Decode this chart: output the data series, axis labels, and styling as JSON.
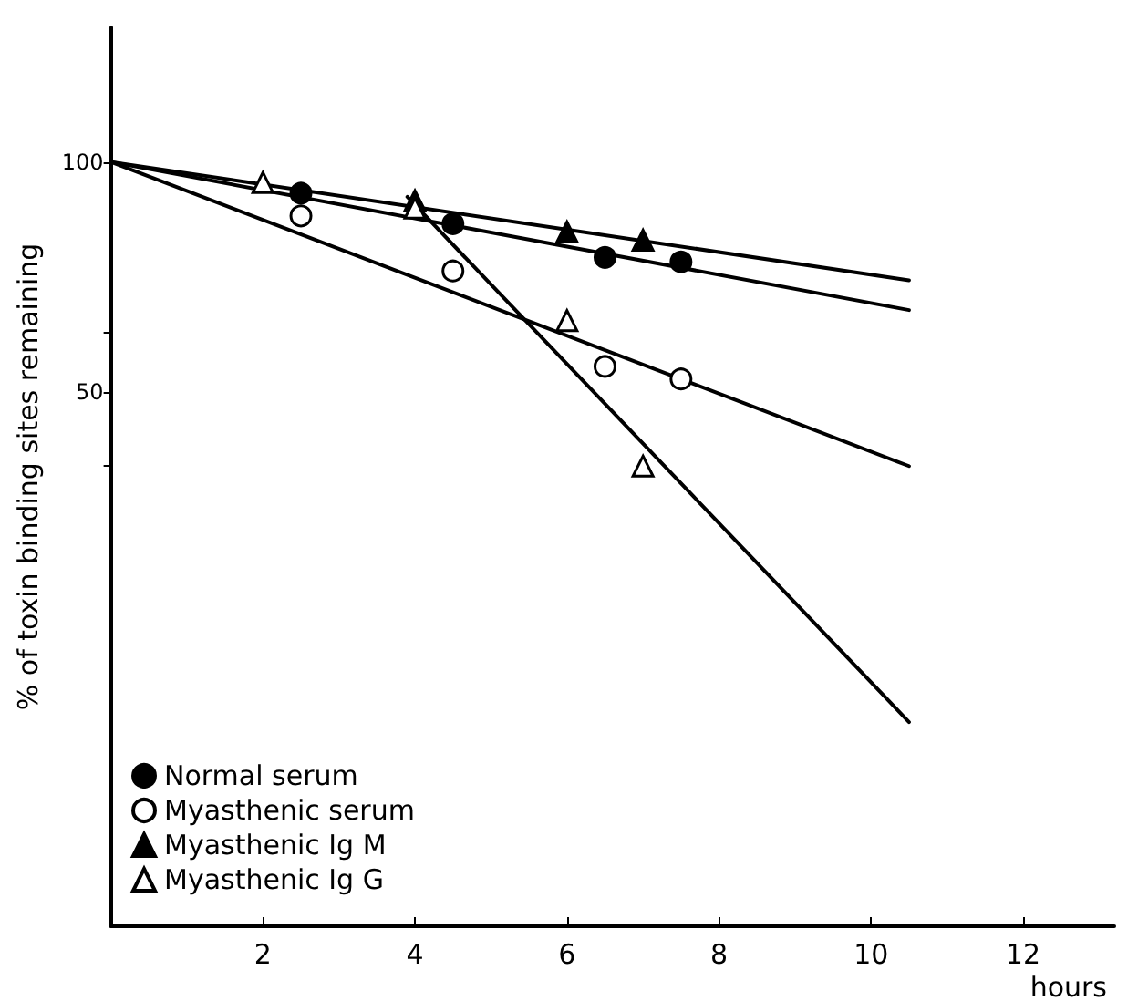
{
  "chart_data": {
    "type": "scatter",
    "xlabel": "hours",
    "ylabel": "% of toxin binding sites remaining",
    "xlim": [
      0,
      13.2
    ],
    "xticks": [
      2,
      4,
      6,
      8,
      10,
      12
    ],
    "ylim": [
      10,
      150
    ],
    "yticks": [
      100,
      {
        "value": 60,
        "label": null
      },
      50,
      {
        "value": 40,
        "label": null
      }
    ],
    "log": "y",
    "grid": false,
    "legend": "bottom left",
    "series": [
      {
        "name": "Normal serum",
        "marker": "circle",
        "color": "#000000",
        "x": [
          2.5,
          4.5,
          6.5,
          7.5
        ],
        "values": [
          91,
          83,
          75,
          74
        ]
      },
      {
        "name": "Myasthenic serum",
        "marker": "circle",
        "color": "#ffffff",
        "x": [
          2.5,
          4.5,
          6.5,
          7.5
        ],
        "values": [
          85,
          72,
          54,
          52
        ]
      },
      {
        "name": "Myasthenic Ig M",
        "marker": "triangle",
        "color": "#000000",
        "x": [
          4,
          6,
          7
        ],
        "values": [
          89,
          81,
          79
        ]
      },
      {
        "name": "Myasthenic Ig G",
        "marker": "triangle",
        "color": "#ffffff",
        "x": [
          2,
          4,
          6,
          7
        ],
        "values": [
          94,
          87,
          62,
          40
        ]
      },
      {
        "type": "line",
        "color": "#000000",
        "line_style": "solid",
        "x": [
          0,
          10.5
        ],
        "values": [
          100,
          64
        ]
      },
      {
        "type": "line",
        "color": "#000000",
        "line_style": "solid",
        "x": [
          0,
          10.5
        ],
        "values": [
          100,
          70
        ]
      },
      {
        "type": "line",
        "color": "#000000",
        "line_style": "solid",
        "x": [
          0,
          10.5
        ],
        "values": [
          100,
          40
        ]
      },
      {
        "type": "line",
        "color": "#000000",
        "line_style": "solid",
        "x": [
          3.9,
          10.5
        ],
        "values": [
          90,
          18.5
        ]
      }
    ]
  }
}
